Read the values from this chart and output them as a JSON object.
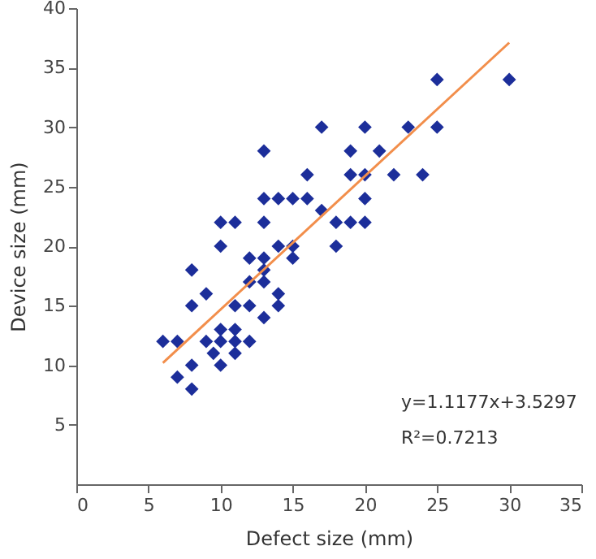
{
  "chart_data": {
    "type": "scatter",
    "xlabel": "Defect size (mm)",
    "ylabel": "Device size (mm)",
    "xlim": [
      0,
      35
    ],
    "xticks": [
      0,
      5,
      10,
      15,
      20,
      25,
      30,
      35
    ],
    "ylim": [
      0,
      40
    ],
    "yticks": [
      5,
      10,
      15,
      20,
      25,
      30,
      35,
      40
    ],
    "grid": false,
    "series": [
      {
        "color": "#1c2e9a",
        "marker": "diamond",
        "x": [
          25,
          30,
          17,
          20,
          23,
          25,
          13,
          19,
          21,
          16,
          19,
          20,
          22,
          24,
          13,
          14,
          15,
          16,
          17,
          20,
          13,
          18,
          19,
          20,
          14,
          15,
          18,
          15,
          13,
          13,
          13,
          14,
          14,
          13,
          10,
          11,
          10,
          12,
          8,
          12,
          9,
          8,
          11,
          12,
          10,
          11,
          6,
          7,
          9,
          10,
          11,
          12,
          9.5,
          11,
          8,
          10,
          7,
          8
        ],
        "values": [
          34,
          34,
          30,
          30,
          30,
          30,
          28,
          28,
          28,
          26,
          26,
          26,
          26,
          26,
          24,
          24,
          24,
          24,
          23,
          24,
          22,
          22,
          22,
          22,
          20,
          20,
          20,
          19,
          19,
          18,
          17,
          16,
          15,
          14,
          22,
          22,
          20,
          19,
          18,
          17,
          16,
          15,
          15,
          15,
          13,
          13,
          12,
          12,
          12,
          12,
          12,
          12,
          11,
          11,
          10,
          10,
          9,
          8
        ]
      },
      {
        "type": "line",
        "color": "#f28e4b",
        "line_style": "solid",
        "x": [
          6,
          30
        ],
        "values": [
          10.2,
          37.1
        ]
      }
    ],
    "annotations": [
      "y=1.1177x+3.5297",
      "R²=0.7213"
    ]
  }
}
